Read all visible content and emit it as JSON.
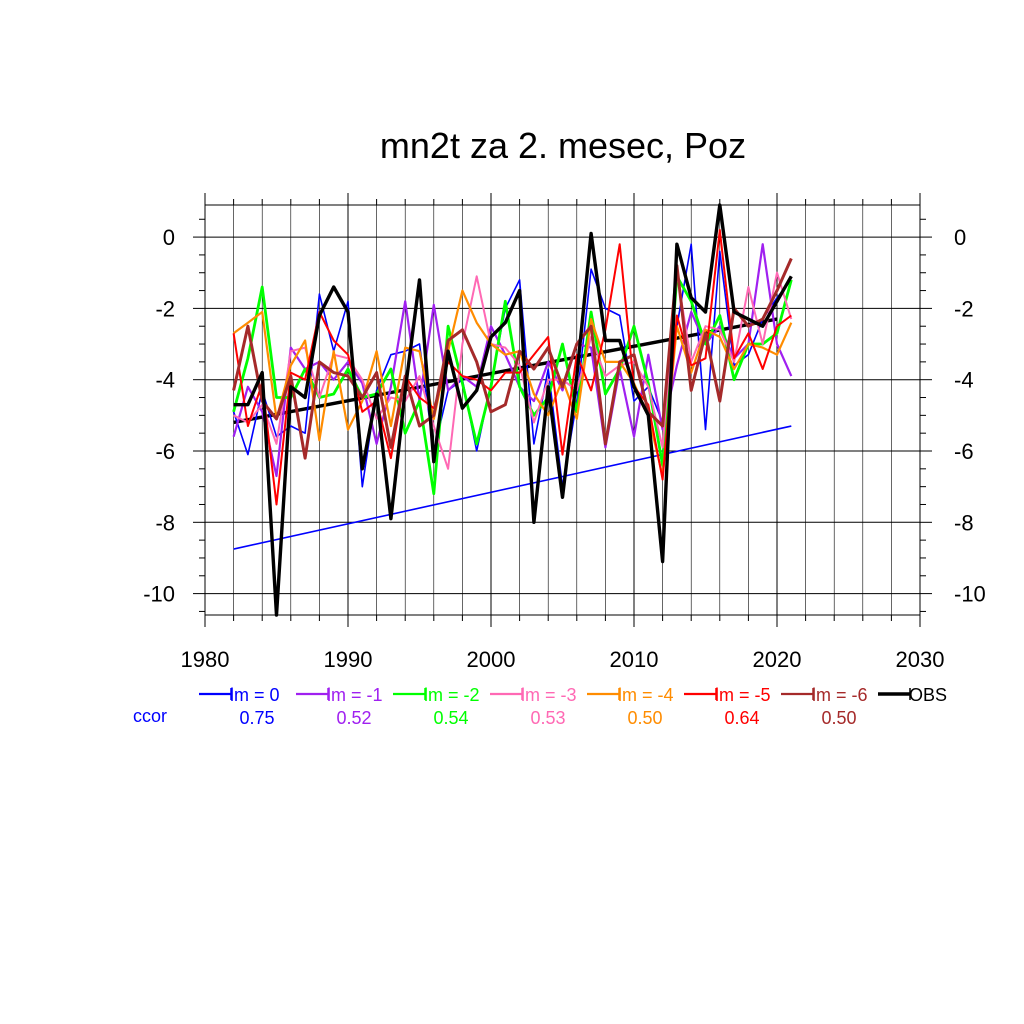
{
  "chart_data": {
    "type": "line",
    "title": "mn2t za 2. mesec, Poz",
    "xlim": [
      1980,
      2030
    ],
    "ylim": [
      -10.6,
      0.9
    ],
    "x_ticks": [
      1980,
      1990,
      2000,
      2010,
      2020,
      2030
    ],
    "y_ticks": [
      0,
      -2,
      -4,
      -6,
      -8,
      -10
    ],
    "x": [
      1982,
      1983,
      1984,
      1985,
      1986,
      1987,
      1988,
      1989,
      1990,
      1991,
      1992,
      1993,
      1994,
      1995,
      1996,
      1997,
      1998,
      1999,
      2000,
      2001,
      2002,
      2003,
      2004,
      2005,
      2006,
      2007,
      2008,
      2009,
      2010,
      2011,
      2012,
      2013,
      2014,
      2015,
      2016,
      2017,
      2018,
      2019,
      2020,
      2021
    ],
    "series": [
      {
        "name": "lm = 0",
        "color": "#0000ff",
        "width": 1.6,
        "values": [
          -4.9,
          -6.1,
          -4.3,
          -5.6,
          -5.3,
          -5.5,
          -1.6,
          -3.2,
          -1.8,
          -7.0,
          -4.3,
          -3.3,
          -3.2,
          -3.0,
          -6.0,
          -4.3,
          -4.0,
          -6.0,
          -4.1,
          -2.0,
          -1.2,
          -5.8,
          -3.7,
          -7.0,
          -4.6,
          -0.9,
          -2.0,
          -2.2,
          -4.6,
          -4.2,
          -5.2,
          -2.5,
          -0.2,
          -5.4,
          -0.4,
          -3.6,
          -3.3,
          -2.3,
          -1.7,
          -1.2
        ]
      },
      {
        "name": "lm = -1",
        "color": "#a020f0",
        "width": 2.2,
        "values": [
          -5.6,
          -4.2,
          -4.9,
          -6.7,
          -3.1,
          -3.7,
          -3.5,
          -4.0,
          -3.5,
          -4.1,
          -5.8,
          -4.2,
          -1.8,
          -4.6,
          -1.9,
          -4.3,
          -3.9,
          -4.2,
          -2.5,
          -3.3,
          -4.2,
          -4.6,
          -3.5,
          -4.3,
          -3.0,
          -3.1,
          -5.9,
          -3.7,
          -5.6,
          -3.3,
          -5.4,
          -3.6,
          -2.1,
          -3.0,
          -2.5,
          -3.4,
          -3.0,
          -0.2,
          -3.0,
          -3.9
        ]
      },
      {
        "name": "lm = -2",
        "color": "#00ff00",
        "width": 2.8,
        "values": [
          -4.9,
          -3.4,
          -1.4,
          -4.5,
          -4.5,
          -3.7,
          -4.5,
          -4.4,
          -3.7,
          -4.5,
          -4.4,
          -3.7,
          -5.5,
          -4.6,
          -7.2,
          -2.5,
          -4.1,
          -5.8,
          -4.2,
          -1.8,
          -4.2,
          -5.0,
          -4.5,
          -3.0,
          -4.9,
          -2.1,
          -4.4,
          -3.7,
          -2.5,
          -4.1,
          -6.4,
          -1.1,
          -1.8,
          -3.0,
          -2.2,
          -4.0,
          -3.0,
          -3.0,
          -2.7,
          -1.2
        ]
      },
      {
        "name": "lm = -3",
        "color": "#ff69b4",
        "width": 2.0,
        "values": [
          -5.0,
          -5.2,
          -4.7,
          -5.8,
          -3.2,
          -3.1,
          -4.5,
          -3.3,
          -3.4,
          -4.0,
          -5.1,
          -4.5,
          -4.6,
          -3.9,
          -5.3,
          -6.5,
          -3.0,
          -1.1,
          -3.0,
          -3.1,
          -3.6,
          -5.2,
          -4.0,
          -4.0,
          -4.3,
          -2.8,
          -3.9,
          -3.6,
          -3.5,
          -4.2,
          -5.9,
          -1.0,
          -3.5,
          -2.5,
          -2.6,
          -3.5,
          -1.4,
          -3.0,
          -1.0,
          -2.3
        ]
      },
      {
        "name": "lm = -4",
        "color": "#ff8c00",
        "width": 2.2,
        "values": [
          -2.7,
          -2.4,
          -2.1,
          -5.1,
          -3.6,
          -2.9,
          -5.7,
          -3.2,
          -5.4,
          -4.6,
          -3.2,
          -5.3,
          -3.1,
          -3.2,
          -5.1,
          -3.2,
          -1.5,
          -2.4,
          -3.0,
          -3.3,
          -3.2,
          -4.4,
          -5.0,
          -4.0,
          -5.1,
          -2.3,
          -3.5,
          -3.5,
          -4.1,
          -5.0,
          -6.7,
          -2.5,
          -3.8,
          -2.6,
          -2.8,
          -3.7,
          -3.0,
          -3.1,
          -3.3,
          -2.4
        ]
      },
      {
        "name": "lm = -5",
        "color": "#ff0000",
        "width": 2.0,
        "values": [
          -2.7,
          -5.3,
          -4.1,
          -7.5,
          -3.8,
          -4.0,
          -2.1,
          -2.9,
          -3.3,
          -4.9,
          -4.6,
          -6.2,
          -3.9,
          -4.5,
          -4.8,
          -3.5,
          -3.9,
          -4.0,
          -4.3,
          -3.8,
          -3.8,
          -3.3,
          -2.8,
          -6.1,
          -3.3,
          -4.3,
          -2.6,
          -0.2,
          -4.2,
          -4.7,
          -6.8,
          -2.2,
          -3.6,
          -3.4,
          0.2,
          -3.4,
          -2.7,
          -3.7,
          -2.5,
          -2.2
        ]
      },
      {
        "name": "lm = -6",
        "color": "#a52a2a",
        "width": 3.0,
        "values": [
          -4.3,
          -2.5,
          -4.6,
          -5.1,
          -3.9,
          -6.2,
          -3.5,
          -3.8,
          -3.9,
          -4.5,
          -3.8,
          -5.9,
          -3.9,
          -5.3,
          -5.0,
          -2.9,
          -2.6,
          -3.5,
          -4.9,
          -4.7,
          -3.2,
          -3.7,
          -3.1,
          -4.2,
          -3.0,
          -2.5,
          -5.8,
          -3.5,
          -3.3,
          -4.9,
          -5.3,
          -0.8,
          -4.3,
          -2.7,
          -4.6,
          -2.0,
          -2.5,
          -2.3,
          -1.5,
          -0.6
        ]
      },
      {
        "name": "OBS",
        "color": "#000000",
        "width": 3.4,
        "values": [
          -4.7,
          -4.7,
          -3.8,
          -10.6,
          -4.2,
          -4.5,
          -2.2,
          -1.4,
          -2.1,
          -6.5,
          -4.4,
          -7.9,
          -4.3,
          -1.2,
          -6.3,
          -3.2,
          -4.8,
          -4.3,
          -2.8,
          -2.4,
          -1.5,
          -8.0,
          -4.2,
          -7.3,
          -3.9,
          0.1,
          -2.9,
          -2.9,
          -4.2,
          -5.0,
          -9.1,
          -0.2,
          -1.7,
          -2.1,
          0.9,
          -2.1,
          -2.3,
          -2.5,
          -1.8,
          -1.1
        ]
      }
    ],
    "trend_lines": [
      {
        "color": "#000000",
        "width": 3.4,
        "x": [
          1982,
          2020
        ],
        "y": [
          -5.2,
          -2.3
        ]
      },
      {
        "color": "#0000ff",
        "width": 1.6,
        "x": [
          1982,
          2021
        ],
        "y": [
          -8.75,
          -5.3
        ]
      }
    ],
    "legend": {
      "placement": "below-plot",
      "items": [
        {
          "label": "lm = 0",
          "color": "#0000ff"
        },
        {
          "label": "lm = -1",
          "color": "#a020f0"
        },
        {
          "label": "lm = -2",
          "color": "#00ff00"
        },
        {
          "label": "lm = -3",
          "color": "#ff69b4"
        },
        {
          "label": "lm = -4",
          "color": "#ff8c00"
        },
        {
          "label": "lm = -5",
          "color": "#ff0000"
        },
        {
          "label": "lm = -6",
          "color": "#a52a2a"
        },
        {
          "label": "OBS",
          "color": "#000000"
        }
      ]
    },
    "ccor": {
      "label": "ccor",
      "label_color": "#0000ff",
      "values": [
        "0.75",
        "0.52",
        "0.54",
        "0.53",
        "0.50",
        "0.64",
        "0.50"
      ],
      "colors": [
        "#0000ff",
        "#a020f0",
        "#00ff00",
        "#ff69b4",
        "#ff8c00",
        "#ff0000",
        "#a52a2a"
      ]
    },
    "grid": true
  }
}
